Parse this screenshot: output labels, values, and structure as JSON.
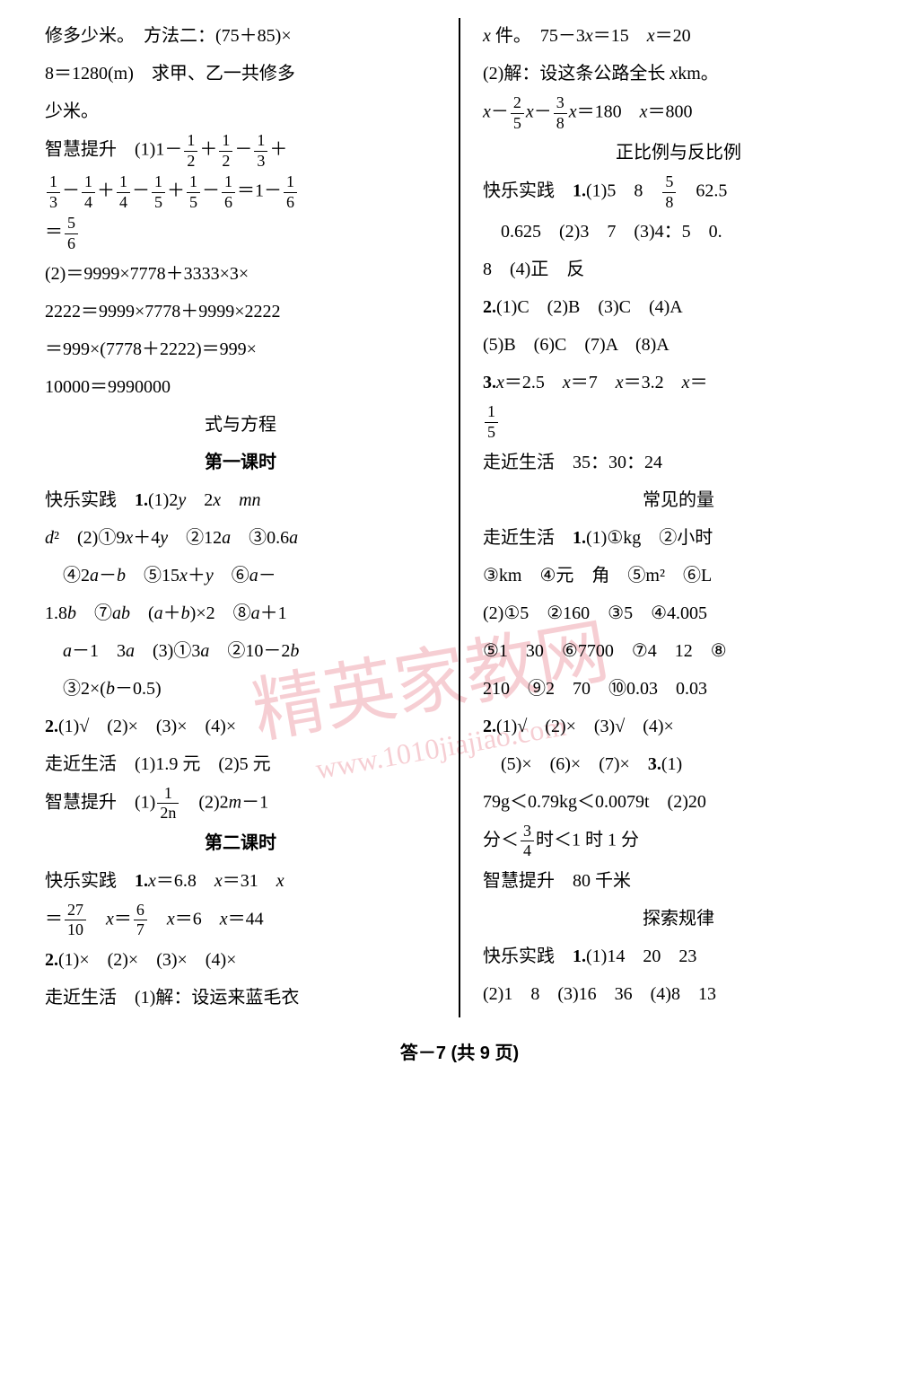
{
  "left": {
    "l1": "修多少米。　方法二：(75＋85)×",
    "l2": "8＝1280(m)　求甲、乙一共修多",
    "l3": "少米。",
    "l4a": "智慧提升　(1)1－",
    "l4b": "＋",
    "l4c": "－",
    "l4d": "＋",
    "l5a": "－",
    "l5b": "＋",
    "l5c": "－",
    "l5d": "＋",
    "l5e": "－",
    "l5f": "＝1－",
    "l6a": "＝",
    "l7": "(2)＝9999×7778＋3333×3×",
    "l8": "2222＝9999×7778＋9999×2222",
    "l9": "＝999×(7778＋2222)＝999×",
    "l10": "10000＝9990000",
    "title1": "式与方程",
    "sub1": "第一课时",
    "l11a": "快乐实践　",
    "l11b": "1.",
    "l11c": "(1)2",
    "l11d": "y",
    "l11e": "　2",
    "l11f": "x",
    "l11g": "　",
    "l11h": "mn",
    "l12a": "d",
    "l12b": "²　(2)①9",
    "l12c": "x",
    "l12d": "＋4",
    "l12e": "y",
    "l12f": "　②12",
    "l12g": "a",
    "l12h": "　③0.6",
    "l12i": "a",
    "l13a": "　④2",
    "l13b": "a",
    "l13c": "－",
    "l13d": "b",
    "l13e": "　⑤15",
    "l13f": "x",
    "l13g": "＋",
    "l13h": "y",
    "l13i": "　⑥",
    "l13j": "a",
    "l13k": "－",
    "l14a": "1.8",
    "l14b": "b",
    "l14c": "　⑦",
    "l14d": "ab",
    "l14e": "　(",
    "l14f": "a",
    "l14g": "＋",
    "l14h": "b",
    "l14i": ")×2　⑧",
    "l14j": "a",
    "l14k": "＋1",
    "l15a": "　",
    "l15b": "a",
    "l15c": "－1　3",
    "l15d": "a",
    "l15e": "　(3)①3",
    "l15f": "a",
    "l15g": "　②10－2",
    "l15h": "b",
    "l16a": "　③2×(",
    "l16b": "b",
    "l16c": "－0.5)",
    "l17a": "2.",
    "l17b": "(1)√　(2)×　(3)×　(4)×",
    "l18": "走近生活　(1)1.9 元　(2)5 元",
    "l19a": "智慧提升　(1)",
    "l19b": "　(2)2",
    "l19c": "m",
    "l19d": "－1",
    "sub2": "第二课时",
    "l20a": "快乐实践　",
    "l20b": "1.",
    "l20c": "x",
    "l20d": "＝6.8　",
    "l20e": "x",
    "l20f": "＝31　",
    "l20g": "x",
    "l21a": "＝",
    "l21b": "　",
    "l21c": "x",
    "l21d": "＝",
    "l21e": "　",
    "l21f": "x",
    "l21g": "＝6　",
    "l21h": "x",
    "l21i": "＝44",
    "l22a": "2.",
    "l22b": "(1)×　(2)×　(3)×　(4)×",
    "l23": "走近生活　(1)解：设运来蓝毛衣"
  },
  "right": {
    "r1a": "x",
    "r1b": " 件。　75－3",
    "r1c": "x",
    "r1d": "＝15　",
    "r1e": "x",
    "r1f": "＝20",
    "r2a": "(2)解：设这条公路全长 ",
    "r2b": "x",
    "r2c": "km。",
    "r3a": "x",
    "r3b": "－",
    "r3c": "x",
    "r3d": "－",
    "r3e": "x",
    "r3f": "＝180　",
    "r3g": "x",
    "r3h": "＝800",
    "title2": "正比例与反比例",
    "r4a": "快乐实践　",
    "r4b": "1.",
    "r4c": "(1)5　8　",
    "r4d": "　62.5",
    "r5": "　0.625　(2)3　7　(3)4：5　0.",
    "r6": "8　(4)正　反",
    "r7a": "2.",
    "r7b": "(1)C　(2)B　(3)C　(4)A",
    "r8": "(5)B　(6)C　(7)A　(8)A",
    "r9a": "3.",
    "r9b": "x",
    "r9c": "＝2.5　",
    "r9d": "x",
    "r9e": "＝7　",
    "r9f": "x",
    "r9g": "＝3.2　",
    "r9h": "x",
    "r9i": "＝",
    "r11": "走近生活　35：30：24",
    "title3": "常见的量",
    "r12a": "走近生活　",
    "r12b": "1.",
    "r12c": "(1)①kg　②小时",
    "r13": "③km　④元　角　⑤m²　⑥L",
    "r14": "(2)①5　②160　③5　④4.005",
    "r15": "⑤1　30　⑥7700　⑦4　12　⑧",
    "r16": "210　⑨2　70　⑩0.03　0.03",
    "r17a": "2.",
    "r17b": "(1)√　(2)×　(3)√　(4)×",
    "r18a": "　(5)×　(6)×　(7)×　",
    "r18b": "3.",
    "r18c": "(1)",
    "r19": "79g＜0.79kg＜0.0079t　(2)20",
    "r20a": "分＜",
    "r20b": "时＜1 时 1 分",
    "r21": "智慧提升　80 千米",
    "title4": "探索规律",
    "r22a": "快乐实践　",
    "r22b": "1.",
    "r22c": "(1)14　20　23",
    "r23": "(2)1　8　(3)16　36　(4)8　13"
  },
  "fractions": {
    "f12": {
      "n": "1",
      "d": "2"
    },
    "f13": {
      "n": "1",
      "d": "3"
    },
    "f14": {
      "n": "1",
      "d": "4"
    },
    "f15": {
      "n": "1",
      "d": "5"
    },
    "f16": {
      "n": "1",
      "d": "6"
    },
    "f56": {
      "n": "5",
      "d": "6"
    },
    "f12n": {
      "n": "1",
      "d": "2n"
    },
    "f2710": {
      "n": "27",
      "d": "10"
    },
    "f67": {
      "n": "6",
      "d": "7"
    },
    "f25": {
      "n": "2",
      "d": "5"
    },
    "f38": {
      "n": "3",
      "d": "8"
    },
    "f58": {
      "n": "5",
      "d": "8"
    },
    "f34": {
      "n": "3",
      "d": "4"
    },
    "fif": {
      "n": "1",
      "d": "5"
    }
  },
  "footer": "答－7 (共 9 页)",
  "watermark": "精英家教网",
  "watermark2": "www.1010jiajiao.com"
}
